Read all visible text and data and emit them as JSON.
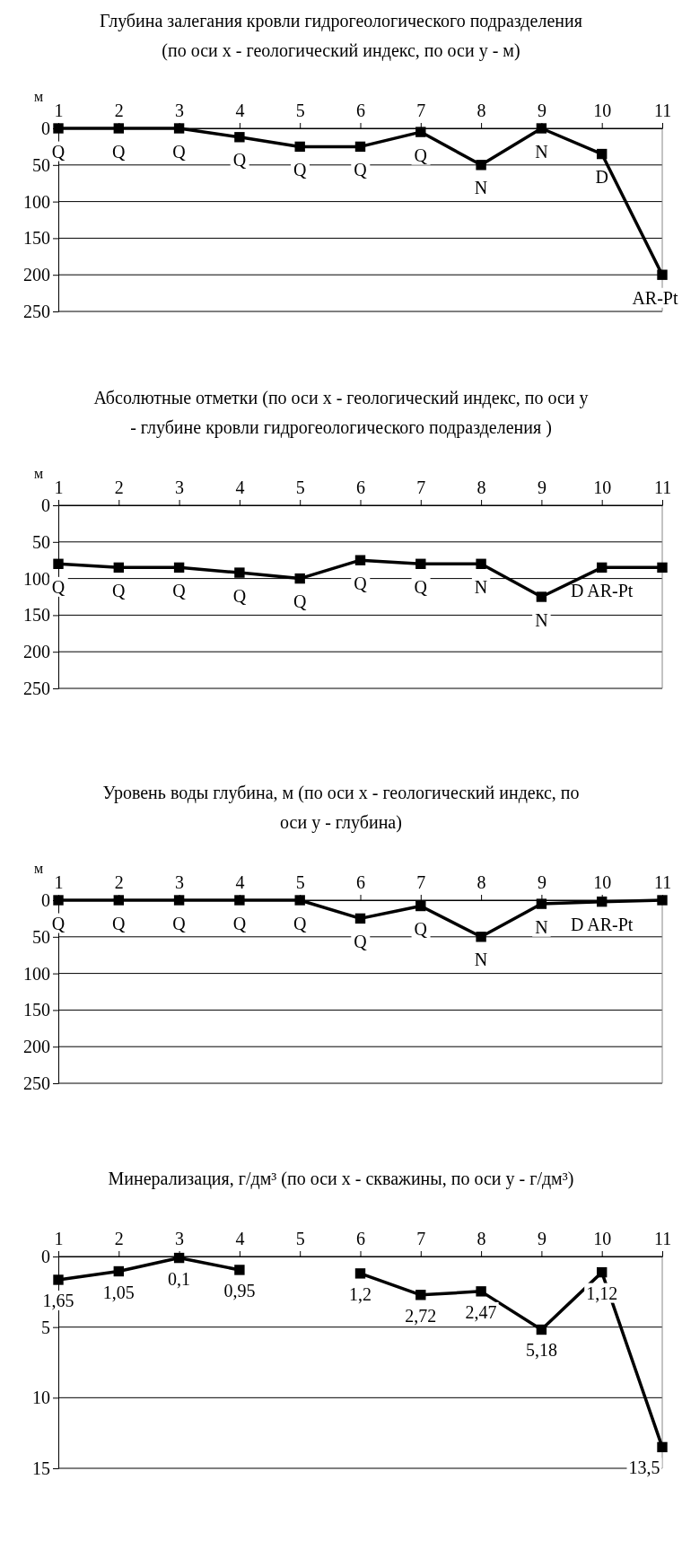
{
  "chart_data": [
    {
      "type": "line",
      "title": "Глубина залегания кровли гидрогеологического подразделения (по оси x - геологический индекс, по оси y - м)",
      "ylabel": "м",
      "categories": [
        "1",
        "2",
        "3",
        "4",
        "5",
        "6",
        "7",
        "8",
        "9",
        "10",
        "11"
      ],
      "series": [
        {
          "color": "#000000",
          "values": [
            0,
            0,
            0,
            12,
            25,
            25,
            5,
            50,
            0,
            35,
            200
          ]
        }
      ],
      "ylim": [
        250,
        0
      ],
      "yticks": [
        0,
        50,
        100,
        150,
        200,
        250
      ],
      "grid": "y",
      "marker": "square",
      "line_style": "solid",
      "annotations": [
        "Q",
        "Q",
        "Q",
        "Q",
        "Q",
        "Q",
        "Q",
        "N",
        "N",
        "D",
        "AR-Pt"
      ]
    },
    {
      "type": "line",
      "title": "Абсолютные отметки  (по оси x - геологический индекс, по оси y - глубине кровли гидрогеологического подразделения )",
      "ylabel": "м",
      "categories": [
        "1",
        "2",
        "3",
        "4",
        "5",
        "6",
        "7",
        "8",
        "9",
        "10",
        "11"
      ],
      "series": [
        {
          "color": "#000000",
          "values": [
            80,
            85,
            85,
            92,
            100,
            75,
            80,
            80,
            125,
            85,
            85
          ]
        }
      ],
      "ylim": [
        250,
        0
      ],
      "yticks": [
        0,
        50,
        100,
        150,
        200,
        250
      ],
      "grid": "y",
      "marker": "square",
      "line_style": "solid",
      "annotations": [
        "Q",
        "Q",
        "Q",
        "Q",
        "Q",
        "Q",
        "Q",
        "N",
        "N",
        "D AR-Pt"
      ]
    },
    {
      "type": "line",
      "title": "Уровень воды глубина, м (по оси x - геологический индекс, по оси y - глубина)",
      "ylabel": "м",
      "categories": [
        "1",
        "2",
        "3",
        "4",
        "5",
        "6",
        "7",
        "8",
        "9",
        "10",
        "11"
      ],
      "series": [
        {
          "color": "#000000",
          "values": [
            0,
            0,
            0,
            0,
            0,
            25,
            8,
            50,
            5,
            2,
            0
          ]
        }
      ],
      "ylim": [
        250,
        0
      ],
      "yticks": [
        0,
        50,
        100,
        150,
        200,
        250
      ],
      "grid": "y",
      "marker": "square",
      "line_style": "solid",
      "annotations": [
        "Q",
        "Q",
        "Q",
        "Q",
        "Q",
        "Q",
        "Q",
        "N",
        "N",
        "D AR-Pt"
      ]
    },
    {
      "type": "line",
      "title": "Минерализация, г/дм³ (по оси x - скважины, по оси y - г/дм³)",
      "categories": [
        "1",
        "2",
        "3",
        "4",
        "5",
        "6",
        "7",
        "8",
        "9",
        "10",
        "11"
      ],
      "series": [
        {
          "color": "#000000",
          "values": [
            1.65,
            1.05,
            0.1,
            0.95,
            null,
            1.2,
            2.72,
            2.47,
            5.18,
            1.12,
            13.5
          ],
          "value_labels": [
            "1,65",
            "1,05",
            "0,1",
            "0,95",
            null,
            "1,2",
            "2,72",
            "2,47",
            "5,18",
            "1,12",
            "13,5"
          ]
        }
      ],
      "ylim": [
        15,
        0
      ],
      "yticks": [
        0,
        5,
        10,
        15
      ],
      "grid": "y",
      "marker": "square",
      "line_style": "solid"
    }
  ]
}
